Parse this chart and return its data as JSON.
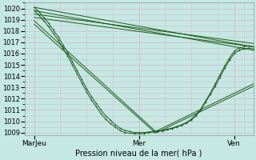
{
  "title": "Pression niveau de la mer( hPa )",
  "bg_color": "#c5e8e2",
  "grid_color": "#d4bcd4",
  "line_color": "#1a5c1a",
  "ylim": [
    1008.8,
    1020.5
  ],
  "xlim": [
    0,
    96
  ],
  "yticks": [
    1009,
    1010,
    1011,
    1012,
    1013,
    1014,
    1015,
    1016,
    1017,
    1018,
    1019,
    1020
  ],
  "xtick_positions": [
    4,
    48,
    88
  ],
  "xtick_labels": [
    "MarJeu",
    "Mer",
    "Ven"
  ],
  "straight_lines": [
    {
      "x": [
        4,
        96
      ],
      "y": [
        1020.1,
        1016.6
      ]
    },
    {
      "x": [
        4,
        96
      ],
      "y": [
        1019.8,
        1016.3
      ]
    },
    {
      "x": [
        4,
        96
      ],
      "y": [
        1019.5,
        1016.9
      ]
    },
    {
      "x": [
        4,
        96
      ],
      "y": [
        1019.2,
        1016.6
      ]
    },
    {
      "x": [
        4,
        55,
        96
      ],
      "y": [
        1018.9,
        1009.1,
        1013.3
      ]
    },
    {
      "x": [
        4,
        55,
        96
      ],
      "y": [
        1018.6,
        1008.95,
        1013.1
      ]
    }
  ],
  "wavy_x": [
    4,
    6,
    8,
    10,
    12,
    14,
    16,
    18,
    20,
    22,
    24,
    26,
    28,
    30,
    32,
    34,
    36,
    38,
    40,
    42,
    44,
    46,
    48,
    50,
    52,
    54,
    56,
    58,
    60,
    62,
    64,
    66,
    68,
    70,
    72,
    74,
    76,
    78,
    80,
    82,
    84,
    86,
    88,
    90,
    92,
    94,
    96
  ],
  "wavy_y1": [
    1020.1,
    1019.7,
    1019.2,
    1018.7,
    1018.1,
    1017.5,
    1016.8,
    1016.1,
    1015.3,
    1014.5,
    1013.7,
    1012.9,
    1012.2,
    1011.6,
    1011.0,
    1010.5,
    1010.1,
    1009.7,
    1009.4,
    1009.2,
    1009.1,
    1009.0,
    1009.0,
    1009.0,
    1009.05,
    1009.1,
    1009.15,
    1009.2,
    1009.3,
    1009.4,
    1009.55,
    1009.7,
    1009.9,
    1010.2,
    1010.6,
    1011.1,
    1011.8,
    1012.5,
    1013.3,
    1014.1,
    1014.9,
    1015.6,
    1016.2,
    1016.5,
    1016.6,
    1016.7,
    1016.6
  ],
  "wavy_y2": [
    1019.8,
    1019.4,
    1018.9,
    1018.4,
    1017.8,
    1017.2,
    1016.5,
    1015.8,
    1015.0,
    1014.2,
    1013.4,
    1012.6,
    1011.9,
    1011.3,
    1010.7,
    1010.2,
    1009.8,
    1009.5,
    1009.2,
    1009.0,
    1008.95,
    1008.9,
    1008.9,
    1008.9,
    1009.0,
    1009.05,
    1009.1,
    1009.15,
    1009.25,
    1009.35,
    1009.5,
    1009.65,
    1009.85,
    1010.1,
    1010.5,
    1011.0,
    1011.7,
    1012.4,
    1013.1,
    1013.9,
    1014.7,
    1015.4,
    1016.0,
    1016.3,
    1016.4,
    1016.5,
    1016.4
  ]
}
